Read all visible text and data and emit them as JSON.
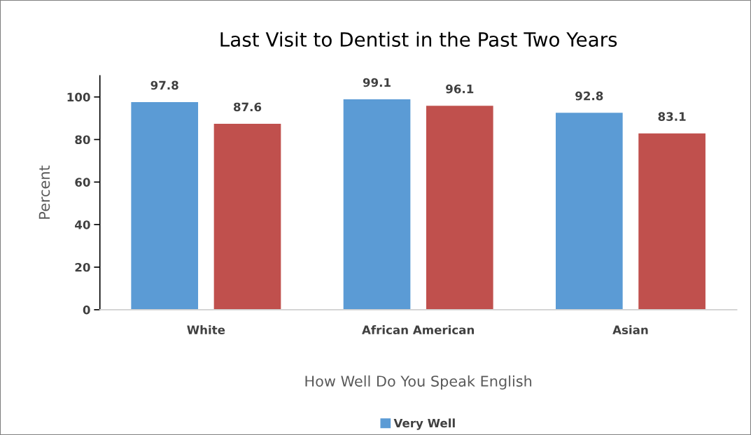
{
  "chart_data": {
    "type": "bar",
    "title": "Last Visit to Dentist in the Past Two Years",
    "xlabel": "How Well Do You Speak English",
    "ylabel": "Percent",
    "categories": [
      "White",
      "African American",
      "Asian"
    ],
    "series": [
      {
        "name": "Very Well",
        "color": "#5b9bd5",
        "values": [
          97.8,
          99.1,
          92.8
        ]
      },
      {
        "color": "#c0504d",
        "values": [
          87.6,
          96.1,
          83.1
        ]
      }
    ],
    "ylim": [
      0,
      110
    ],
    "yticks": [
      0,
      20,
      40,
      60,
      80,
      100
    ],
    "data_labels": true,
    "grid": false,
    "legend": "bottom"
  }
}
